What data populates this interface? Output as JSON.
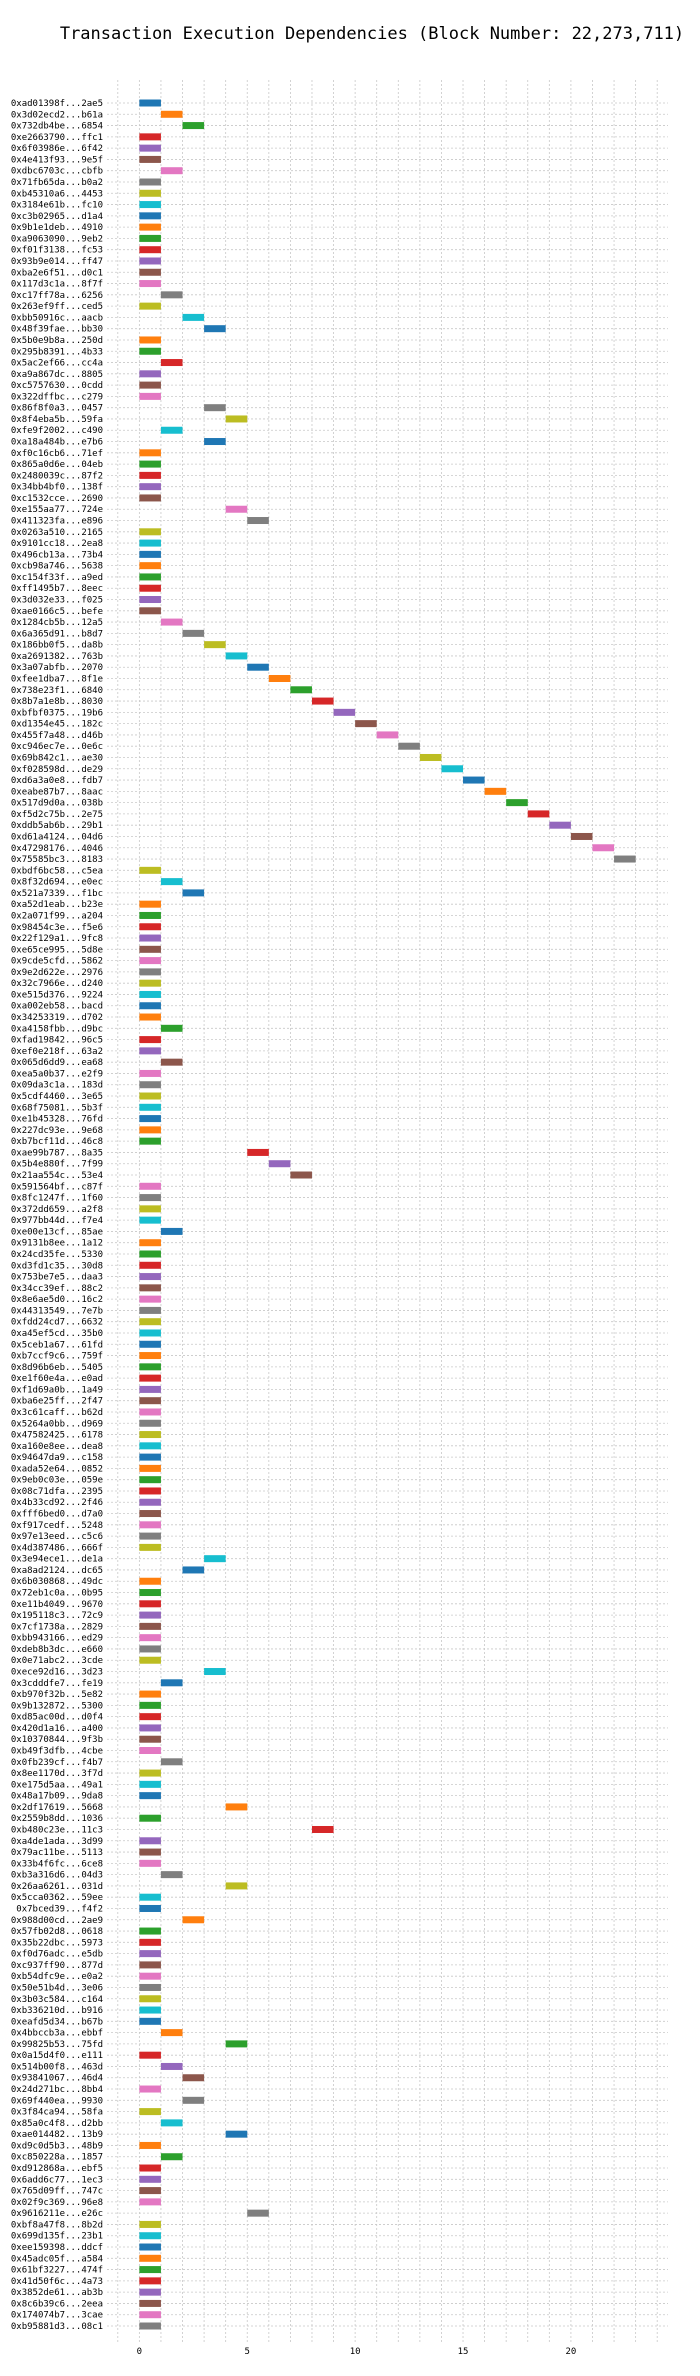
{
  "chart_data": {
    "type": "bar",
    "orientation": "horizontal-gantt",
    "title": "Transaction Execution Dependencies (Block Number: 22,273,711)",
    "xlabel": "",
    "ylabel": "",
    "xlim": [
      -1.5,
      24.5
    ],
    "xticks": [
      0,
      5,
      10,
      15,
      20
    ],
    "grid": true,
    "bar_length": 1,
    "palette": [
      "#1f77b4",
      "#ff7f0e",
      "#2ca02c",
      "#d62728",
      "#9467bd",
      "#8c564b",
      "#e377c2",
      "#7f7f7f",
      "#bcbd22",
      "#17becf"
    ],
    "transactions": [
      {
        "label": "0xad01398f...2ae5",
        "start": 0
      },
      {
        "label": "0x3d02ecd2...b61a",
        "start": 1
      },
      {
        "label": "0x732db4be...6854",
        "start": 2
      },
      {
        "label": "0xe2663790...ffc1",
        "start": 0
      },
      {
        "label": "0x6f03986e...6f42",
        "start": 0
      },
      {
        "label": "0x4e413f93...9e5f",
        "start": 0
      },
      {
        "label": "0xdbc6703c...cbfb",
        "start": 1
      },
      {
        "label": "0x71fb65da...b0a2",
        "start": 0
      },
      {
        "label": "0xb45310a6...4453",
        "start": 0
      },
      {
        "label": "0x3184e61b...fc10",
        "start": 0
      },
      {
        "label": "0xc3b02965...d1a4",
        "start": 0
      },
      {
        "label": "0x9b1e1deb...4910",
        "start": 0
      },
      {
        "label": "0xa9063090...9eb2",
        "start": 0
      },
      {
        "label": "0xf01f3138...fc53",
        "start": 0
      },
      {
        "label": "0x93b9e014...ff47",
        "start": 0
      },
      {
        "label": "0xba2e6f51...d0c1",
        "start": 0
      },
      {
        "label": "0x117d3c1a...8f7f",
        "start": 0
      },
      {
        "label": "0xc17ff78a...6256",
        "start": 1
      },
      {
        "label": "0x263ef9ff...ced5",
        "start": 0
      },
      {
        "label": "0xbb50916c...aacb",
        "start": 2
      },
      {
        "label": "0x48f39fae...bb30",
        "start": 3
      },
      {
        "label": "0x5b0e9b8a...250d",
        "start": 0
      },
      {
        "label": "0x295b8391...4b33",
        "start": 0
      },
      {
        "label": "0x5ac2ef66...cc4a",
        "start": 1
      },
      {
        "label": "0xa9a867dc...8805",
        "start": 0
      },
      {
        "label": "0xc5757630...0cdd",
        "start": 0
      },
      {
        "label": "0x322dffbc...c279",
        "start": 0
      },
      {
        "label": "0x86f8f0a3...0457",
        "start": 3
      },
      {
        "label": "0x8f4eba5b...59fa",
        "start": 4
      },
      {
        "label": "0xfe9f2002...c490",
        "start": 1
      },
      {
        "label": "0xa18a484b...e7b6",
        "start": 3
      },
      {
        "label": "0xf0c16cb6...71ef",
        "start": 0
      },
      {
        "label": "0x865a0d6e...04eb",
        "start": 0
      },
      {
        "label": "0x2480039c...87f2",
        "start": 0
      },
      {
        "label": "0x34bb4bf0...138f",
        "start": 0
      },
      {
        "label": "0xc1532cce...2690",
        "start": 0
      },
      {
        "label": "0xe155aa77...724e",
        "start": 4
      },
      {
        "label": "0x411323fa...e896",
        "start": 5
      },
      {
        "label": "0x0263a510...2165",
        "start": 0
      },
      {
        "label": "0x9101cc18...2ea8",
        "start": 0
      },
      {
        "label": "0x496cb13a...73b4",
        "start": 0
      },
      {
        "label": "0xcb98a746...5638",
        "start": 0
      },
      {
        "label": "0xc154f33f...a9ed",
        "start": 0
      },
      {
        "label": "0xff1495b7...8eec",
        "start": 0
      },
      {
        "label": "0x3d032e33...f025",
        "start": 0
      },
      {
        "label": "0xae0166c5...befe",
        "start": 0
      },
      {
        "label": "0x1284cb5b...12a5",
        "start": 1
      },
      {
        "label": "0x6a365d91...b8d7",
        "start": 2
      },
      {
        "label": "0x186bb0f5...da8b",
        "start": 3
      },
      {
        "label": "0xa2691382...763b",
        "start": 4
      },
      {
        "label": "0x3a07abfb...2070",
        "start": 5
      },
      {
        "label": "0xfee1dba7...8f1e",
        "start": 6
      },
      {
        "label": "0x738e23f1...6840",
        "start": 7
      },
      {
        "label": "0x8b7a1e8b...8030",
        "start": 8
      },
      {
        "label": "0xbfbf0375...19b6",
        "start": 9
      },
      {
        "label": "0xd1354e45...182c",
        "start": 10
      },
      {
        "label": "0x455f7a48...d46b",
        "start": 11
      },
      {
        "label": "0xc946ec7e...0e6c",
        "start": 12
      },
      {
        "label": "0x69b842c1...ae30",
        "start": 13
      },
      {
        "label": "0xf028598d...de29",
        "start": 14
      },
      {
        "label": "0xd6a3a0e8...fdb7",
        "start": 15
      },
      {
        "label": "0xeabe87b7...8aac",
        "start": 16
      },
      {
        "label": "0x517d9d0a...038b",
        "start": 17
      },
      {
        "label": "0xf5d2c75b...2e75",
        "start": 18
      },
      {
        "label": "0xddb5ab6b...29b1",
        "start": 19
      },
      {
        "label": "0xd61a4124...04d6",
        "start": 20
      },
      {
        "label": "0x47298176...4046",
        "start": 21
      },
      {
        "label": "0x75585bc3...8183",
        "start": 22
      },
      {
        "label": "0xbdf6bc58...c5ea",
        "start": 0
      },
      {
        "label": "0x8f32d694...e0ec",
        "start": 1
      },
      {
        "label": "0x521a7339...f1bc",
        "start": 2
      },
      {
        "label": "0xa52d1eab...b23e",
        "start": 0
      },
      {
        "label": "0x2a071f99...a204",
        "start": 0
      },
      {
        "label": "0x98454c3e...f5e6",
        "start": 0
      },
      {
        "label": "0x22f129a1...9fc8",
        "start": 0
      },
      {
        "label": "0xe65ce995...5d8e",
        "start": 0
      },
      {
        "label": "0x9cde5cfd...5862",
        "start": 0
      },
      {
        "label": "0x9e2d622e...2976",
        "start": 0
      },
      {
        "label": "0x32c7966e...d240",
        "start": 0
      },
      {
        "label": "0xe515d376...9224",
        "start": 0
      },
      {
        "label": "0xa002eb58...bacd",
        "start": 0
      },
      {
        "label": "0x34253319...d702",
        "start": 0
      },
      {
        "label": "0xa4158fbb...d9bc",
        "start": 1
      },
      {
        "label": "0xfad19842...96c5",
        "start": 0
      },
      {
        "label": "0xef0e218f...63a2",
        "start": 0
      },
      {
        "label": "0x065d6dd9...ea68",
        "start": 1
      },
      {
        "label": "0xea5a0b37...e2f9",
        "start": 0
      },
      {
        "label": "0x09da3c1a...183d",
        "start": 0
      },
      {
        "label": "0x5cdf4460...3e65",
        "start": 0
      },
      {
        "label": "0x68f75081...5b3f",
        "start": 0
      },
      {
        "label": "0xe1b45328...76fd",
        "start": 0
      },
      {
        "label": "0x227dc93e...9e68",
        "start": 0
      },
      {
        "label": "0xb7bcf11d...46c8",
        "start": 0
      },
      {
        "label": "0xae99b787...8a35",
        "start": 5
      },
      {
        "label": "0x5b4e880f...7f99",
        "start": 6
      },
      {
        "label": "0x21aa554c...53e4",
        "start": 7
      },
      {
        "label": "0x591564bf...c87f",
        "start": 0
      },
      {
        "label": "0x8fc1247f...1f60",
        "start": 0
      },
      {
        "label": "0x372dd659...a2f8",
        "start": 0
      },
      {
        "label": "0x977bb44d...f7e4",
        "start": 0
      },
      {
        "label": "0xe00e13cf...85ae",
        "start": 1
      },
      {
        "label": "0x9131b8ee...1a12",
        "start": 0
      },
      {
        "label": "0x24cd35fe...5330",
        "start": 0
      },
      {
        "label": "0xd3fd1c35...30d8",
        "start": 0
      },
      {
        "label": "0x753be7e5...daa3",
        "start": 0
      },
      {
        "label": "0x34cc39ef...88c2",
        "start": 0
      },
      {
        "label": "0x8e6ae5d0...16c2",
        "start": 0
      },
      {
        "label": "0x44313549...7e7b",
        "start": 0
      },
      {
        "label": "0xfdd24cd7...6632",
        "start": 0
      },
      {
        "label": "0xa45ef5cd...35b0",
        "start": 0
      },
      {
        "label": "0x5ceb1a67...61fd",
        "start": 0
      },
      {
        "label": "0xb7ccf9c6...759f",
        "start": 0
      },
      {
        "label": "0x8d96b6eb...5405",
        "start": 0
      },
      {
        "label": "0xe1f60e4a...e0ad",
        "start": 0
      },
      {
        "label": "0xf1d69a0b...1a49",
        "start": 0
      },
      {
        "label": "0xba6e25ff...2f47",
        "start": 0
      },
      {
        "label": "0x3c61caff...b62d",
        "start": 0
      },
      {
        "label": "0x5264a0bb...d969",
        "start": 0
      },
      {
        "label": "0x47582425...6178",
        "start": 0
      },
      {
        "label": "0xa160e8ee...dea8",
        "start": 0
      },
      {
        "label": "0x94647da9...c158",
        "start": 0
      },
      {
        "label": "0xada52e64...0852",
        "start": 0
      },
      {
        "label": "0x9eb0c03e...059e",
        "start": 0
      },
      {
        "label": "0x08c71dfa...2395",
        "start": 0
      },
      {
        "label": "0x4b33cd92...2f46",
        "start": 0
      },
      {
        "label": "0xfff6bed0...d7a0",
        "start": 0
      },
      {
        "label": "0xf917cedf...5248",
        "start": 0
      },
      {
        "label": "0x97e13eed...c5c6",
        "start": 0
      },
      {
        "label": "0x4d387486...666f",
        "start": 0
      },
      {
        "label": "0x3e94ece1...de1a",
        "start": 3
      },
      {
        "label": "0xa8ad2124...dc65",
        "start": 2
      },
      {
        "label": "0x6b030868...49dc",
        "start": 0
      },
      {
        "label": "0x72eb1c0a...0b95",
        "start": 0
      },
      {
        "label": "0xe11b4049...9670",
        "start": 0
      },
      {
        "label": "0x195118c3...72c9",
        "start": 0
      },
      {
        "label": "0x7cf1738a...2829",
        "start": 0
      },
      {
        "label": "0xbb943166...ed29",
        "start": 0
      },
      {
        "label": "0xdeb8b3dc...e660",
        "start": 0
      },
      {
        "label": "0x0e71abc2...3cde",
        "start": 0
      },
      {
        "label": "0xece92d16...3d23",
        "start": 3
      },
      {
        "label": "0x3cdddfe7...fe19",
        "start": 1
      },
      {
        "label": "0xb970f32b...5e82",
        "start": 0
      },
      {
        "label": "0x9b132872...5300",
        "start": 0
      },
      {
        "label": "0xd85ac00d...d0f4",
        "start": 0
      },
      {
        "label": "0x420d1a16...a400",
        "start": 0
      },
      {
        "label": "0x10370844...9f3b",
        "start": 0
      },
      {
        "label": "0xb49f3dfb...4cbe",
        "start": 0
      },
      {
        "label": "0x0fb239cf...f4b7",
        "start": 1
      },
      {
        "label": "0x8ee1170d...3f7d",
        "start": 0
      },
      {
        "label": "0xe175d5aa...49a1",
        "start": 0
      },
      {
        "label": "0x48a17b09...9da8",
        "start": 0
      },
      {
        "label": "0x2df17619...5668",
        "start": 4
      },
      {
        "label": "0x2559b8dd...1036",
        "start": 0
      },
      {
        "label": "0xb480c23e...11c3",
        "start": 8
      },
      {
        "label": "0xa4de1ada...3d99",
        "start": 0
      },
      {
        "label": "0x79ac11be...5113",
        "start": 0
      },
      {
        "label": "0x33b4f6fc...6ce8",
        "start": 0
      },
      {
        "label": "0xb3a316d6...04d3",
        "start": 1
      },
      {
        "label": "0x26aa6261...031d",
        "start": 4
      },
      {
        "label": "0x5cca0362...59ee",
        "start": 0
      },
      {
        "label": "0x7bced39...f4f2",
        "start": 0
      },
      {
        "label": "0x988d00cd...2ae9",
        "start": 2
      },
      {
        "label": "0x57fb02d8...0618",
        "start": 0
      },
      {
        "label": "0x35b22dbc...5973",
        "start": 0
      },
      {
        "label": "0xf0d76adc...e5db",
        "start": 0
      },
      {
        "label": "0xc937ff90...877d",
        "start": 0
      },
      {
        "label": "0xb54dfc9e...e0a2",
        "start": 0
      },
      {
        "label": "0x50e51b4d...3e06",
        "start": 0
      },
      {
        "label": "0x3b03c584...c164",
        "start": 0
      },
      {
        "label": "0xb336210d...b916",
        "start": 0
      },
      {
        "label": "0xeafd5d34...b67b",
        "start": 0
      },
      {
        "label": "0x4bbccb3a...ebbf",
        "start": 1
      },
      {
        "label": "0x99825b53...75fd",
        "start": 4
      },
      {
        "label": "0x0a15d4f0...e111",
        "start": 0
      },
      {
        "label": "0x514b00f8...463d",
        "start": 1
      },
      {
        "label": "0x93841067...46d4",
        "start": 2
      },
      {
        "label": "0x24d271bc...8bb4",
        "start": 0
      },
      {
        "label": "0x69f440ea...9930",
        "start": 2
      },
      {
        "label": "0x3f84ca94...58fa",
        "start": 0
      },
      {
        "label": "0x85a0c4f8...d2bb",
        "start": 1
      },
      {
        "label": "0xae014482...13b9",
        "start": 4
      },
      {
        "label": "0xd9c0d5b3...48b9",
        "start": 0
      },
      {
        "label": "0xc850228a...1857",
        "start": 1
      },
      {
        "label": "0xd912868a...ebf5",
        "start": 0
      },
      {
        "label": "0x6add6c77...1ec3",
        "start": 0
      },
      {
        "label": "0x765d09ff...747c",
        "start": 0
      },
      {
        "label": "0x02f9c369...96e8",
        "start": 0
      },
      {
        "label": "0x9616211e...e26c",
        "start": 5
      },
      {
        "label": "0xbf8a47f8...8b2d",
        "start": 0
      },
      {
        "label": "0x699d135f...23b1",
        "start": 0
      },
      {
        "label": "0xee159398...ddcf",
        "start": 0
      },
      {
        "label": "0x45adc05f...a584",
        "start": 0
      },
      {
        "label": "0x61bf3227...474f",
        "start": 0
      },
      {
        "label": "0x41d50f6c...4a73",
        "start": 0
      },
      {
        "label": "0x3852de61...ab3b",
        "start": 0
      },
      {
        "label": "0x8c6b39c6...2eea",
        "start": 0
      },
      {
        "label": "0x174074b7...3cae",
        "start": 0
      },
      {
        "label": "0xb95881d3...08c1",
        "start": 0
      }
    ]
  }
}
